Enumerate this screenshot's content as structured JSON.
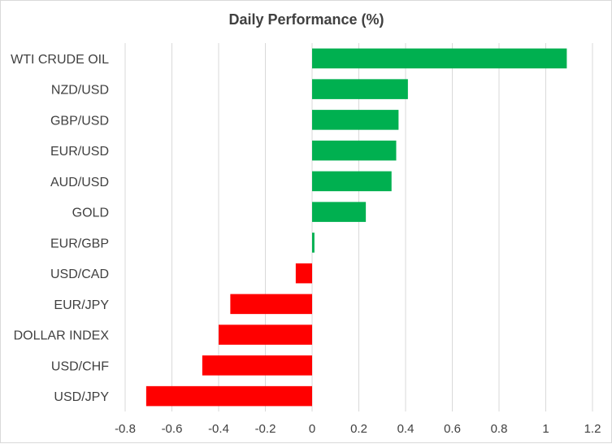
{
  "chart_data": {
    "type": "bar",
    "orientation": "horizontal",
    "title": "Daily Performance  (%)",
    "xlabel": "",
    "ylabel": "",
    "categories": [
      "WTI CRUDE OIL",
      "NZD/USD",
      "GBP/USD",
      "EUR/USD",
      "AUD/USD",
      "GOLD",
      "EUR/GBP",
      "USD/CAD",
      "EUR/JPY",
      "DOLLAR INDEX",
      "USD/CHF",
      "USD/JPY"
    ],
    "values": [
      1.09,
      0.41,
      0.37,
      0.36,
      0.34,
      0.23,
      0.01,
      -0.07,
      -0.35,
      -0.4,
      -0.47,
      -0.71
    ],
    "xlim": [
      -0.8,
      1.2
    ],
    "xticks": [
      -0.8,
      -0.6,
      -0.4,
      -0.2,
      0,
      0.2,
      0.4,
      0.6,
      0.8,
      1,
      1.2
    ],
    "xtick_labels": [
      "-0.8",
      "-0.6",
      "-0.4",
      "-0.2",
      "0",
      "0.2",
      "0.4",
      "0.6",
      "0.8",
      "1",
      "1.2"
    ],
    "grid": true,
    "legend": "none",
    "colors": {
      "positive": "#00b050",
      "negative": "#ff0000",
      "grid": "#d9d9d9",
      "text": "#404040"
    }
  }
}
